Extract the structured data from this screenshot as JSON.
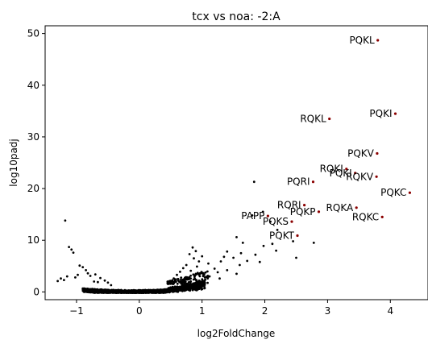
{
  "chart_data": {
    "type": "scatter",
    "title": "tcx vs noa: -2:A",
    "xlabel": "log2FoldChange",
    "ylabel": "log10padj",
    "xlim": [
      -1.5,
      4.6
    ],
    "ylim": [
      -1.5,
      51.5
    ],
    "xticks": [
      -1,
      0,
      1,
      2,
      3,
      4
    ],
    "yticks": [
      0,
      10,
      20,
      30,
      40,
      50
    ],
    "grid": false,
    "colors": {
      "background": "#000000",
      "highlight": "#8b0000"
    },
    "highlighted": [
      {
        "label": "PQKL",
        "x": 3.8,
        "y": 48.7
      },
      {
        "label": "PQKI",
        "x": 4.08,
        "y": 34.5
      },
      {
        "label": "RQKL",
        "x": 3.03,
        "y": 33.5
      },
      {
        "label": "PQKV",
        "x": 3.79,
        "y": 26.8
      },
      {
        "label": "RQKI",
        "x": 3.3,
        "y": 23.8
      },
      {
        "label": "PQKI",
        "x": 3.44,
        "y": 23.0
      },
      {
        "label": "RQKV",
        "x": 3.78,
        "y": 22.3
      },
      {
        "label": "PQRI",
        "x": 2.77,
        "y": 21.3
      },
      {
        "label": "PQKC",
        "x": 4.31,
        "y": 19.2
      },
      {
        "label": "RQRI",
        "x": 2.63,
        "y": 16.8
      },
      {
        "label": "RQKA",
        "x": 3.46,
        "y": 16.3
      },
      {
        "label": "PQKP",
        "x": 2.86,
        "y": 15.5
      },
      {
        "label": "PAPP",
        "x": 2.05,
        "y": 14.7
      },
      {
        "label": "RQKC",
        "x": 3.87,
        "y": 14.5
      },
      {
        "label": "PQKS",
        "x": 2.43,
        "y": 13.6
      },
      {
        "label": "PQKT",
        "x": 2.52,
        "y": 10.9
      }
    ],
    "background_points": [
      [
        -1.18,
        13.8
      ],
      [
        -1.12,
        8.7
      ],
      [
        -1.08,
        8.2
      ],
      [
        -1.05,
        7.6
      ],
      [
        -0.95,
        5.1
      ],
      [
        -0.9,
        4.8
      ],
      [
        -0.85,
        4.2
      ],
      [
        -0.82,
        3.6
      ],
      [
        -0.78,
        3.1
      ],
      [
        -0.7,
        3.4
      ],
      [
        -0.62,
        2.7
      ],
      [
        -0.55,
        2.2
      ],
      [
        -1.3,
        2.1
      ],
      [
        -1.25,
        2.6
      ],
      [
        -1.2,
        2.3
      ],
      [
        -1.15,
        3.0
      ],
      [
        -1.02,
        2.8
      ],
      [
        -0.98,
        3.3
      ],
      [
        -0.72,
        2.0
      ],
      [
        -0.66,
        1.9
      ],
      [
        -0.5,
        1.8
      ],
      [
        -0.45,
        1.3
      ],
      [
        1.83,
        21.3
      ],
      [
        1.97,
        15.5
      ],
      [
        1.8,
        14.8
      ],
      [
        2.09,
        13.6
      ],
      [
        2.2,
        12.0
      ],
      [
        1.55,
        10.6
      ],
      [
        1.65,
        9.5
      ],
      [
        1.98,
        8.9
      ],
      [
        2.12,
        9.3
      ],
      [
        2.45,
        9.8
      ],
      [
        2.78,
        9.5
      ],
      [
        2.5,
        6.6
      ],
      [
        2.18,
        8.0
      ],
      [
        1.4,
        7.8
      ],
      [
        1.62,
        7.5
      ],
      [
        1.35,
        6.8
      ],
      [
        1.5,
        6.6
      ],
      [
        1.3,
        5.9
      ],
      [
        1.85,
        7.2
      ],
      [
        1.1,
        5.5
      ],
      [
        1.2,
        4.5
      ],
      [
        1.25,
        3.8
      ],
      [
        1.12,
        3.0
      ],
      [
        1.4,
        4.2
      ],
      [
        1.55,
        3.5
      ],
      [
        1.28,
        2.6
      ],
      [
        1.05,
        2.4
      ],
      [
        1.6,
        5.2
      ],
      [
        1.72,
        6.0
      ],
      [
        1.92,
        5.8
      ],
      [
        0.85,
        8.6
      ],
      [
        0.9,
        7.9
      ],
      [
        0.8,
        7.3
      ],
      [
        0.87,
        6.5
      ],
      [
        0.95,
        5.9
      ],
      [
        0.75,
        5.2
      ],
      [
        1.0,
        6.9
      ],
      [
        0.7,
        4.6
      ],
      [
        0.92,
        4.9
      ],
      [
        0.82,
        4.1
      ],
      [
        0.65,
        3.9
      ],
      [
        0.97,
        3.6
      ],
      [
        0.6,
        3.3
      ],
      [
        0.88,
        3.2
      ],
      [
        0.76,
        2.8
      ],
      [
        0.55,
        2.6
      ],
      [
        0.7,
        2.4
      ],
      [
        0.5,
        2.0
      ]
    ]
  }
}
